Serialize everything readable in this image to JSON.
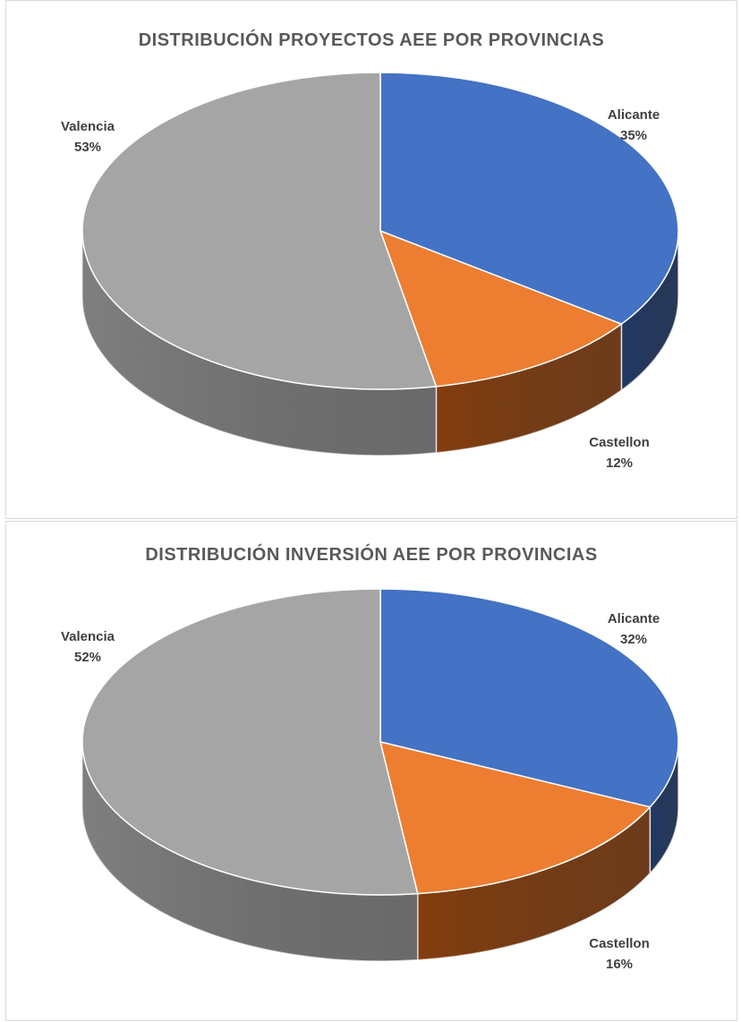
{
  "chart_data": [
    {
      "type": "pie",
      "title": "DISTRIBUCIÓN PROYECTOS AEE POR PROVINCIAS",
      "style": "3d",
      "slices": [
        {
          "label": "Alicante",
          "value": 35,
          "value_label": "35%",
          "color": "#4472C4",
          "side_color": "#1F3864"
        },
        {
          "label": "Castellon",
          "value": 12,
          "value_label": "12%",
          "color": "#ED7D31",
          "side_color": "#843C0C"
        },
        {
          "label": "Valencia",
          "value": 53,
          "value_label": "53%",
          "color": "#A5A5A5",
          "side_color": "#7F7F7F"
        }
      ],
      "legend": "none",
      "data_labels": "outside"
    },
    {
      "type": "pie",
      "title": "DISTRIBUCIÓN INVERSIÓN AEE POR PROVINCIAS",
      "style": "3d",
      "slices": [
        {
          "label": "Alicante",
          "value": 32,
          "value_label": "32%",
          "color": "#4472C4",
          "side_color": "#1F3864"
        },
        {
          "label": "Castellon",
          "value": 16,
          "value_label": "16%",
          "color": "#ED7D31",
          "side_color": "#843C0C"
        },
        {
          "label": "Valencia",
          "value": 52,
          "value_label": "52%",
          "color": "#A5A5A5",
          "side_color": "#7F7F7F"
        }
      ],
      "legend": "none",
      "data_labels": "outside"
    }
  ]
}
